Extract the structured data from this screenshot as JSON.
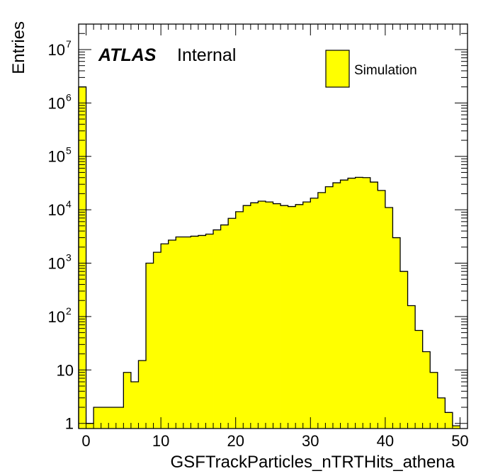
{
  "chart_data": {
    "type": "bar",
    "xlabel": "GSFTrackParticles_nTRTHits_athena",
    "ylabel": "Entries",
    "xlim": [
      -1,
      51
    ],
    "ylim": [
      0.8,
      30000000
    ],
    "yscale": "log",
    "grid": false,
    "x_ticks": [
      "0",
      "10",
      "20",
      "30",
      "40",
      "50"
    ],
    "y_ticks": [
      {
        "value": 1,
        "label": "1",
        "exp": ""
      },
      {
        "value": 10,
        "label": "10",
        "exp": ""
      },
      {
        "value": 100,
        "label": "10",
        "exp": "2"
      },
      {
        "value": 1000,
        "label": "10",
        "exp": "3"
      },
      {
        "value": 10000,
        "label": "10",
        "exp": "4"
      },
      {
        "value": 100000,
        "label": "10",
        "exp": "5"
      },
      {
        "value": 1000000,
        "label": "10",
        "exp": "6"
      },
      {
        "value": 10000000,
        "label": "10",
        "exp": "7"
      }
    ],
    "bin_edges_start": -1,
    "bin_width": 1,
    "series": [
      {
        "name": "Simulation",
        "color": "#ffff00",
        "line_color": "#000000",
        "values": [
          2000000,
          1,
          2,
          2,
          2,
          2,
          9,
          6,
          15,
          1000,
          1600,
          2300,
          2700,
          3100,
          3100,
          3200,
          3300,
          3500,
          4200,
          5200,
          6900,
          9200,
          12000,
          13500,
          14500,
          14000,
          13000,
          12000,
          11500,
          12500,
          14000,
          16500,
          21000,
          27000,
          32000,
          36000,
          39000,
          40500,
          40000,
          33000,
          23000,
          11000,
          3000,
          700,
          160,
          55,
          22,
          9,
          3,
          1.6,
          0.9
        ]
      }
    ],
    "legend_position": "top-right",
    "labels": {
      "atlas": "ATLAS",
      "internal": "Internal"
    }
  }
}
